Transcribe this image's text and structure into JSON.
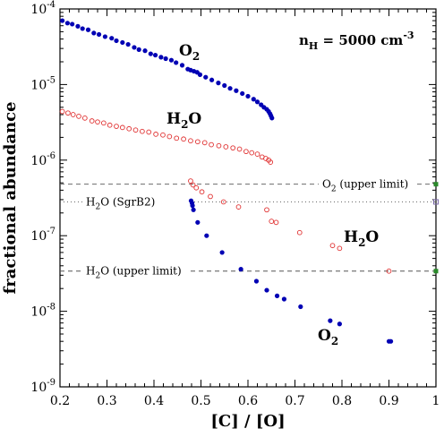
{
  "chart_data": {
    "type": "scatter",
    "xlabel": "[C] / [O]",
    "ylabel": "fractional abundance",
    "xlim": [
      0.2,
      1.0
    ],
    "ylim": [
      1e-09,
      0.0001
    ],
    "yscale": "log",
    "xticks": [
      "0.2",
      "0.3",
      "0.4",
      "0.5",
      "0.6",
      "0.7",
      "0.8",
      "0.9",
      "1"
    ],
    "yticks": [
      {
        "base": "10",
        "exp": "-9",
        "value": 1e-09
      },
      {
        "base": "10",
        "exp": "-8",
        "value": 1e-08
      },
      {
        "base": "10",
        "exp": "-7",
        "value": 1e-07
      },
      {
        "base": "10",
        "exp": "-6",
        "value": 1e-06
      },
      {
        "base": "10",
        "exp": "-5",
        "value": 1e-05
      },
      {
        "base": "10",
        "exp": "-4",
        "value": 0.0001
      }
    ],
    "annotation": {
      "main": "n",
      "sub": "H",
      "mid": " = 5000 cm",
      "sup": "-3"
    },
    "series": [
      {
        "name": "O2 (high)",
        "label": {
          "main": "O",
          "sub": "2"
        },
        "marker": "filled-circle",
        "color": "#0000b4",
        "points": [
          [
            0.205,
            7e-05
          ],
          [
            0.216,
            6.5e-05
          ],
          [
            0.226,
            6.3e-05
          ],
          [
            0.238,
            5.9e-05
          ],
          [
            0.248,
            5.5e-05
          ],
          [
            0.26,
            5.3e-05
          ],
          [
            0.272,
            4.8e-05
          ],
          [
            0.283,
            4.6e-05
          ],
          [
            0.296,
            4.3e-05
          ],
          [
            0.31,
            4.1e-05
          ],
          [
            0.32,
            3.8e-05
          ],
          [
            0.333,
            3.6e-05
          ],
          [
            0.345,
            3.4e-05
          ],
          [
            0.358,
            3.1e-05
          ],
          [
            0.368,
            2.9e-05
          ],
          [
            0.381,
            2.8e-05
          ],
          [
            0.393,
            2.55e-05
          ],
          [
            0.403,
            2.45e-05
          ],
          [
            0.415,
            2.3e-05
          ],
          [
            0.425,
            2.2e-05
          ],
          [
            0.437,
            2.1e-05
          ],
          [
            0.447,
            1.95e-05
          ],
          [
            0.46,
            1.8e-05
          ],
          [
            0.472,
            1.6e-05
          ],
          [
            0.478,
            1.55e-05
          ],
          [
            0.485,
            1.5e-05
          ],
          [
            0.492,
            1.45e-05
          ],
          [
            0.498,
            1.35e-05
          ],
          [
            0.51,
            1.25e-05
          ],
          [
            0.523,
            1.15e-05
          ],
          [
            0.537,
            1.05e-05
          ],
          [
            0.55,
            9.7e-06
          ],
          [
            0.562,
            8.9e-06
          ],
          [
            0.575,
            8.3e-06
          ],
          [
            0.588,
            7.6e-06
          ],
          [
            0.6,
            7e-06
          ],
          [
            0.612,
            6.4e-06
          ],
          [
            0.62,
            5.9e-06
          ],
          [
            0.628,
            5.4e-06
          ],
          [
            0.634,
            5e-06
          ],
          [
            0.64,
            4.7e-06
          ],
          [
            0.644,
            4.4e-06
          ],
          [
            0.647,
            4.1e-06
          ],
          [
            0.649,
            3.85e-06
          ],
          [
            0.651,
            3.6e-06
          ]
        ]
      },
      {
        "name": "H2O (high)",
        "label": {
          "main": "H",
          "sub": "2",
          "tail": "O"
        },
        "marker": "open-circle",
        "color": "#e03030",
        "points": [
          [
            0.205,
            4.4e-06
          ],
          [
            0.217,
            4.2e-06
          ],
          [
            0.228,
            4e-06
          ],
          [
            0.24,
            3.8e-06
          ],
          [
            0.253,
            3.6e-06
          ],
          [
            0.268,
            3.3e-06
          ],
          [
            0.28,
            3.2e-06
          ],
          [
            0.293,
            3.1e-06
          ],
          [
            0.306,
            2.9e-06
          ],
          [
            0.32,
            2.8e-06
          ],
          [
            0.333,
            2.7e-06
          ],
          [
            0.347,
            2.6e-06
          ],
          [
            0.361,
            2.5e-06
          ],
          [
            0.375,
            2.4e-06
          ],
          [
            0.389,
            2.35e-06
          ],
          [
            0.404,
            2.2e-06
          ],
          [
            0.419,
            2.15e-06
          ],
          [
            0.433,
            2.05e-06
          ],
          [
            0.448,
            1.95e-06
          ],
          [
            0.463,
            1.9e-06
          ],
          [
            0.478,
            1.8e-06
          ],
          [
            0.493,
            1.75e-06
          ],
          [
            0.508,
            1.7e-06
          ],
          [
            0.522,
            1.6e-06
          ],
          [
            0.538,
            1.55e-06
          ],
          [
            0.553,
            1.5e-06
          ],
          [
            0.568,
            1.45e-06
          ],
          [
            0.582,
            1.4e-06
          ],
          [
            0.596,
            1.3e-06
          ],
          [
            0.608,
            1.25e-06
          ],
          [
            0.62,
            1.2e-06
          ],
          [
            0.63,
            1.1e-06
          ],
          [
            0.638,
            1.05e-06
          ],
          [
            0.644,
            1e-06
          ],
          [
            0.648,
            9.4e-07
          ]
        ]
      },
      {
        "name": "H2O (low)",
        "label": {
          "main": "H",
          "sub": "2",
          "tail": "O"
        },
        "marker": "open-circle",
        "color": "#e03030",
        "points": [
          [
            0.478,
            5.3e-07
          ],
          [
            0.483,
            4.7e-07
          ],
          [
            0.49,
            4.3e-07
          ],
          [
            0.502,
            3.8e-07
          ],
          [
            0.52,
            3.3e-07
          ],
          [
            0.548,
            2.8e-07
          ],
          [
            0.58,
            2.4e-07
          ],
          [
            0.64,
            2.2e-07
          ],
          [
            0.65,
            1.55e-07
          ],
          [
            0.66,
            1.5e-07
          ],
          [
            0.71,
            1.1e-07
          ],
          [
            0.78,
            7.4e-08
          ],
          [
            0.795,
            6.8e-08
          ],
          [
            0.9,
            3.4e-08
          ]
        ]
      },
      {
        "name": "O2 (low)",
        "label": {
          "main": "O",
          "sub": "2"
        },
        "marker": "filled-circle",
        "color": "#0000b4",
        "points": [
          [
            0.479,
            2.9e-07
          ],
          [
            0.481,
            2.7e-07
          ],
          [
            0.482,
            2.5e-07
          ],
          [
            0.484,
            2.2e-07
          ],
          [
            0.493,
            1.5e-07
          ],
          [
            0.512,
            1e-07
          ],
          [
            0.545,
            6e-08
          ],
          [
            0.585,
            3.6e-08
          ],
          [
            0.618,
            2.5e-08
          ],
          [
            0.64,
            1.9e-08
          ],
          [
            0.662,
            1.6e-08
          ],
          [
            0.677,
            1.45e-08
          ],
          [
            0.712,
            1.15e-08
          ],
          [
            0.775,
            7.5e-09
          ],
          [
            0.795,
            6.8e-09
          ],
          [
            0.9,
            4e-09
          ],
          [
            0.904,
            4e-09
          ]
        ]
      }
    ],
    "hlines": [
      {
        "value": 4.8e-07,
        "style": "dashed",
        "label": {
          "main": "O",
          "sub": "2",
          "tail": " (upper limit)"
        },
        "label_pos": "right",
        "end_marker": {
          "type": "filled-square",
          "color": "#2a8a2a"
        }
      },
      {
        "value": 2.8e-07,
        "style": "dotted",
        "label": {
          "main": "H",
          "sub": "2",
          "tail": "O (SgrB2)"
        },
        "label_pos": "left",
        "end_marker": {
          "type": "open-square",
          "color": "#7a6aa8"
        }
      },
      {
        "value": 3.4e-08,
        "style": "dashed",
        "label": {
          "main": "H",
          "sub": "2",
          "tail": "O (upper limit)"
        },
        "label_pos": "left",
        "end_marker": {
          "type": "filled-square",
          "color": "#2a8a2a"
        }
      }
    ]
  }
}
